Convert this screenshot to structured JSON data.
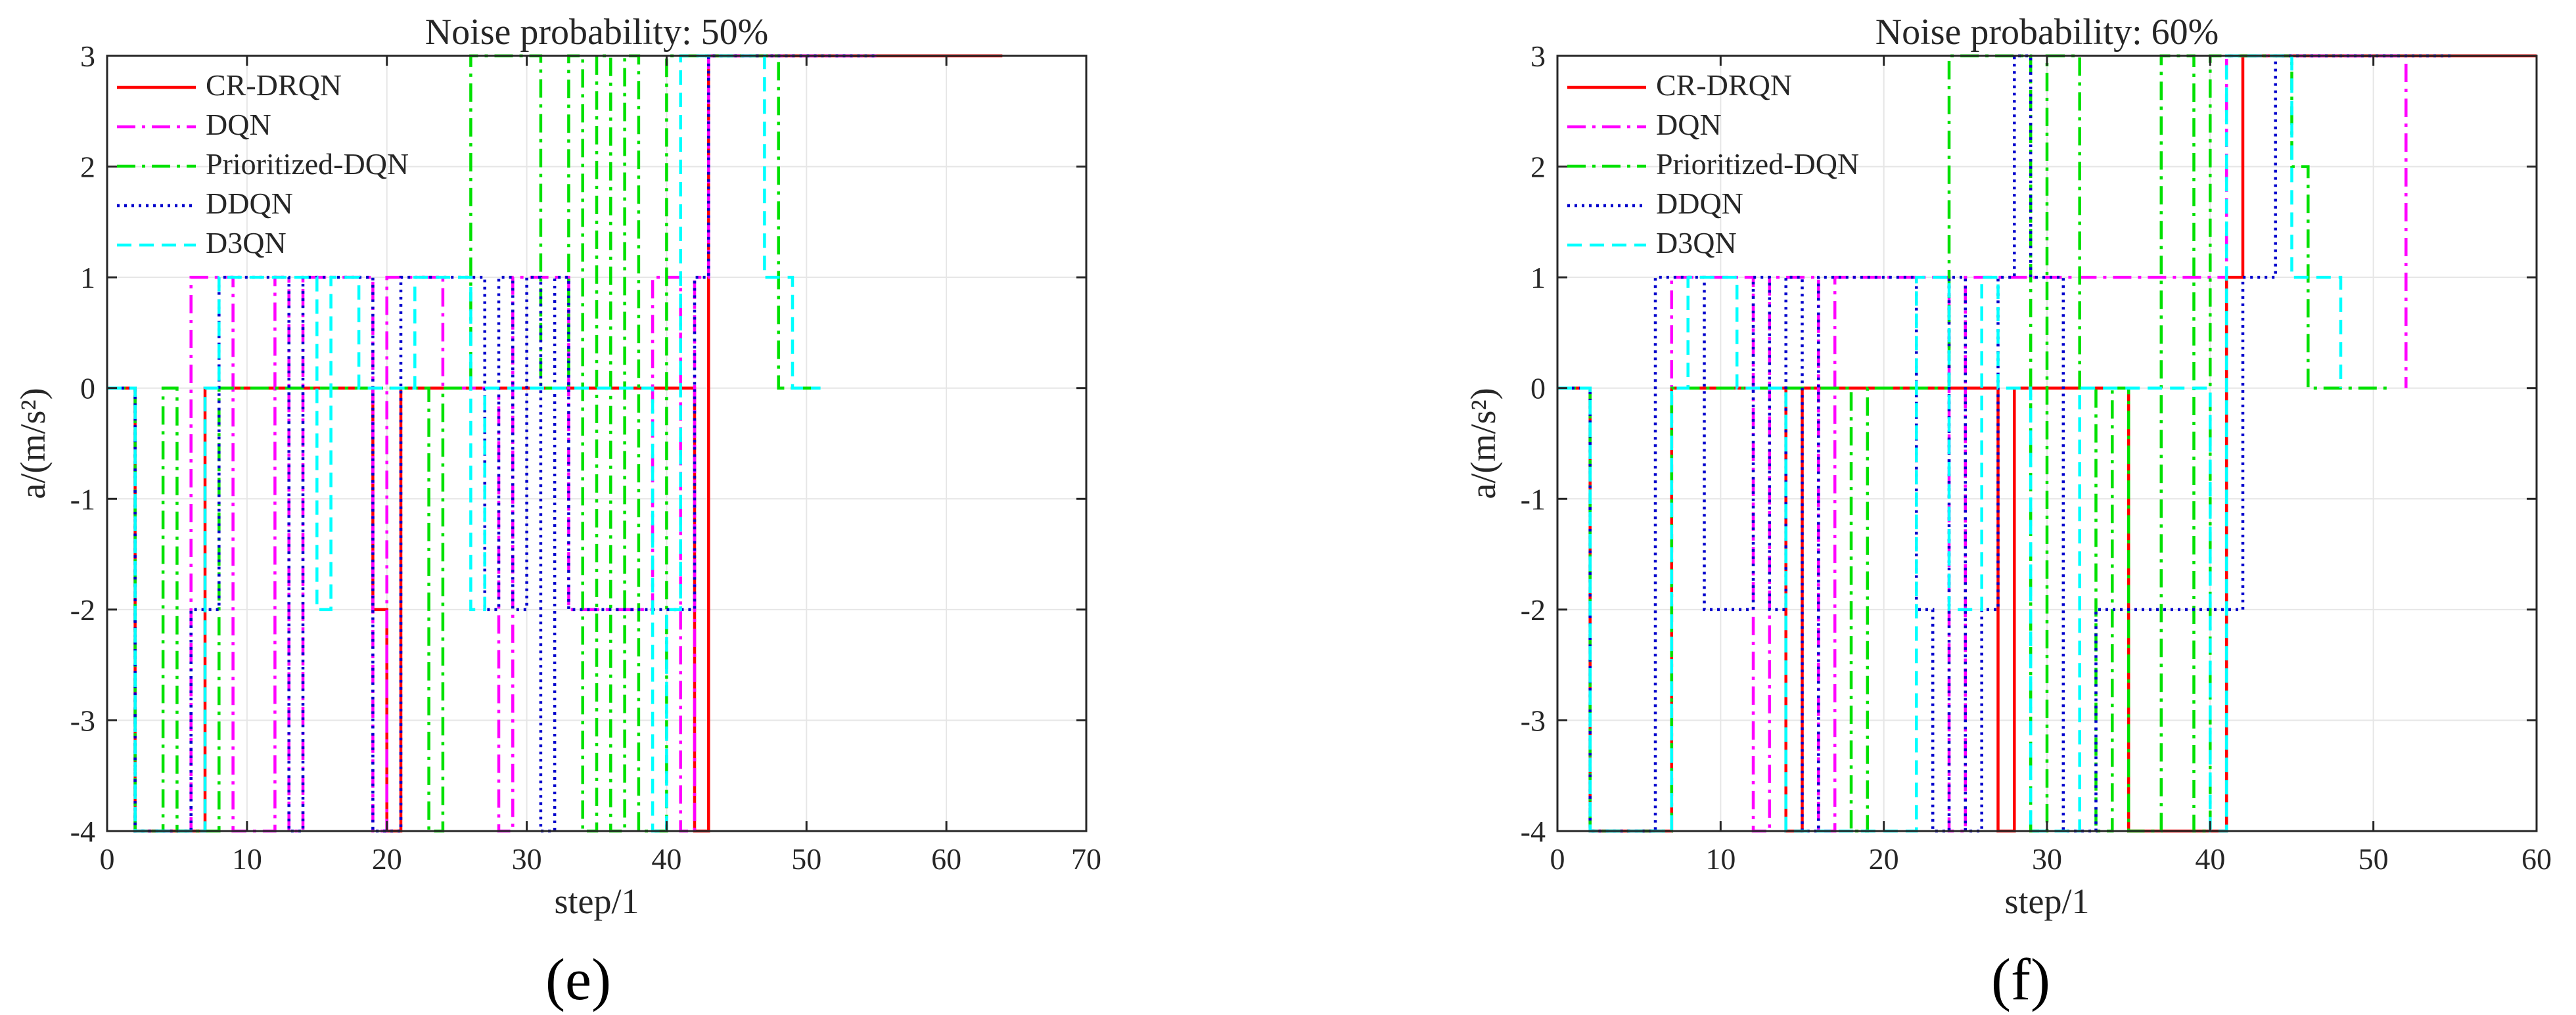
{
  "figure": {
    "captions": [
      "(e)",
      "(f)"
    ]
  },
  "colors": {
    "CR-DRQN": "#ff0000",
    "DQN": "#ff00ff",
    "Prioritized-DQN": "#00e000",
    "DDQN": "#0000cc",
    "D3QN": "#00ffff",
    "grid": "#e6e6e6",
    "axis": "#262626"
  },
  "chart_data": [
    {
      "type": "line",
      "title": "Noise probability: 50%",
      "xlabel": "step/1",
      "ylabel": "a/(m/s²)",
      "xlim": [
        0,
        70
      ],
      "ylim": [
        -4,
        3
      ],
      "xticks": [
        0,
        10,
        20,
        30,
        40,
        50,
        60,
        70
      ],
      "yticks": [
        -4,
        -3,
        -2,
        -1,
        0,
        1,
        2,
        3
      ],
      "legend_location": "top-left",
      "series": [
        {
          "name": "CR-DRQN",
          "style": "solid",
          "color": "#ff0000",
          "x": [
            0,
            2,
            2,
            7,
            7,
            8,
            8,
            19,
            19,
            20,
            20,
            21,
            21,
            27,
            27,
            41,
            41,
            42,
            42,
            43,
            43,
            55,
            55,
            64
          ],
          "y": [
            0,
            0,
            -4,
            -4,
            0,
            0,
            0,
            0,
            -2,
            -2,
            -4,
            -4,
            0,
            0,
            0,
            0,
            0,
            0,
            -4,
            -4,
            3,
            3,
            3,
            3
          ]
        },
        {
          "name": "DQN",
          "style": "dashdot",
          "color": "#ff00ff",
          "x": [
            0,
            2,
            2,
            6,
            6,
            9,
            9,
            12,
            12,
            13,
            13,
            14,
            14,
            19,
            19,
            20,
            20,
            24,
            24,
            28,
            28,
            29,
            29,
            33,
            33,
            39,
            39,
            41,
            41,
            42,
            42,
            43,
            43,
            55
          ],
          "y": [
            0,
            0,
            -4,
            -4,
            1,
            1,
            -4,
            -4,
            1,
            1,
            -4,
            -4,
            1,
            1,
            -4,
            -4,
            1,
            1,
            0,
            0,
            -4,
            -4,
            1,
            1,
            -2,
            -2,
            1,
            1,
            -4,
            -4,
            1,
            1,
            3,
            3
          ]
        },
        {
          "name": "Prioritized-DQN",
          "style": "dashdot",
          "color": "#00e000",
          "x": [
            0,
            2,
            2,
            4,
            4,
            5,
            5,
            7,
            7,
            8,
            8,
            23,
            23,
            24,
            24,
            26,
            26,
            31,
            31,
            33,
            33,
            34,
            34,
            35,
            35,
            36,
            36,
            37,
            37,
            38,
            38,
            40,
            40,
            42,
            42,
            48,
            48,
            51
          ],
          "y": [
            0,
            0,
            -4,
            -4,
            0,
            0,
            -4,
            -4,
            -4,
            -4,
            0,
            0,
            -4,
            -4,
            0,
            0,
            3,
            3,
            0,
            0,
            3,
            3,
            -4,
            -4,
            3,
            3,
            -4,
            -4,
            3,
            3,
            -4,
            -4,
            3,
            3,
            3,
            3,
            0,
            0
          ]
        },
        {
          "name": "DDQN",
          "style": "dotted",
          "color": "#0000cc",
          "x": [
            0,
            2,
            2,
            6,
            6,
            8,
            8,
            13,
            13,
            14,
            14,
            19,
            19,
            21,
            21,
            27,
            27,
            28,
            28,
            29,
            29,
            30,
            30,
            31,
            31,
            32,
            32,
            33,
            33,
            34,
            34,
            39,
            39,
            42,
            42,
            43,
            43,
            55
          ],
          "y": [
            0,
            0,
            -4,
            -4,
            -2,
            -2,
            1,
            1,
            -4,
            -4,
            1,
            1,
            -4,
            -4,
            1,
            1,
            -2,
            -2,
            1,
            1,
            -2,
            -2,
            1,
            1,
            -4,
            -4,
            1,
            1,
            -2,
            -2,
            -2,
            -2,
            -2,
            -2,
            1,
            1,
            3,
            3
          ]
        },
        {
          "name": "D3QN",
          "style": "dashed",
          "color": "#00ffff",
          "x": [
            0,
            2,
            2,
            7,
            7,
            8,
            8,
            15,
            15,
            16,
            16,
            18,
            18,
            22,
            22,
            26,
            26,
            27,
            27,
            39,
            39,
            40,
            40,
            41,
            41,
            47,
            47,
            48,
            48,
            49,
            49,
            51
          ],
          "y": [
            0,
            0,
            -4,
            -4,
            0,
            0,
            1,
            1,
            -2,
            -2,
            1,
            1,
            0,
            0,
            1,
            1,
            -2,
            -2,
            0,
            0,
            -4,
            -4,
            -2,
            -2,
            3,
            3,
            1,
            1,
            1,
            1,
            0,
            0
          ]
        }
      ]
    },
    {
      "type": "line",
      "title": "Noise probability: 60%",
      "xlabel": "step/1",
      "ylabel": "a/(m/s²)",
      "xlim": [
        0,
        60
      ],
      "ylim": [
        -4,
        3
      ],
      "xticks": [
        0,
        10,
        20,
        30,
        40,
        50,
        60
      ],
      "yticks": [
        -4,
        -3,
        -2,
        -1,
        0,
        1,
        2,
        3
      ],
      "legend_location": "top-left",
      "series": [
        {
          "name": "CR-DRQN",
          "style": "solid",
          "color": "#ff0000",
          "x": [
            0,
            2,
            2,
            7,
            7,
            14,
            14,
            15,
            15,
            27,
            27,
            28,
            28,
            35,
            35,
            41,
            41,
            42,
            42,
            60
          ],
          "y": [
            0,
            0,
            -4,
            -4,
            0,
            0,
            -4,
            -4,
            0,
            0,
            -4,
            -4,
            0,
            0,
            -4,
            -4,
            1,
            1,
            3,
            3
          ]
        },
        {
          "name": "DQN",
          "style": "dashdot",
          "color": "#ff00ff",
          "x": [
            0,
            2,
            2,
            7,
            7,
            12,
            12,
            13,
            13,
            16,
            16,
            17,
            17,
            24,
            24,
            25,
            25,
            41,
            41,
            42,
            42,
            52,
            52
          ],
          "y": [
            0,
            0,
            -4,
            -4,
            1,
            1,
            -4,
            -4,
            1,
            1,
            -4,
            -4,
            1,
            1,
            -4,
            -4,
            1,
            1,
            3,
            3,
            3,
            3,
            0
          ]
        },
        {
          "name": "Prioritized-DQN",
          "style": "dashdot",
          "color": "#00e000",
          "x": [
            0,
            2,
            2,
            7,
            7,
            18,
            18,
            19,
            19,
            24,
            24,
            29,
            29,
            30,
            30,
            32,
            32,
            33,
            33,
            34,
            34,
            35,
            35,
            37,
            37,
            39,
            39,
            40,
            40,
            45,
            45,
            46,
            46,
            51
          ],
          "y": [
            0,
            0,
            -4,
            -4,
            0,
            0,
            -4,
            -4,
            0,
            0,
            3,
            3,
            -4,
            -4,
            3,
            3,
            0,
            0,
            -4,
            -4,
            0,
            0,
            -4,
            -4,
            3,
            3,
            -4,
            -4,
            3,
            3,
            2,
            2,
            0,
            0
          ]
        },
        {
          "name": "DDQN",
          "style": "dotted",
          "color": "#0000cc",
          "x": [
            0,
            2,
            2,
            6,
            6,
            9,
            9,
            12,
            12,
            13,
            13,
            14,
            14,
            15,
            15,
            16,
            16,
            22,
            22,
            23,
            23,
            24,
            24,
            25,
            25,
            26,
            26,
            27,
            27,
            28,
            28,
            29,
            29,
            31,
            31,
            33,
            33,
            42,
            42,
            44,
            44,
            45,
            45,
            55
          ],
          "y": [
            0,
            0,
            -4,
            -4,
            1,
            1,
            -2,
            -2,
            1,
            1,
            -2,
            -2,
            1,
            1,
            -4,
            -4,
            1,
            1,
            -2,
            -2,
            -4,
            -4,
            1,
            1,
            -4,
            -4,
            -2,
            -2,
            1,
            1,
            3,
            3,
            1,
            1,
            -4,
            -4,
            -2,
            -2,
            1,
            1,
            3,
            3,
            3,
            3
          ]
        },
        {
          "name": "D3QN",
          "style": "dashed",
          "color": "#00ffff",
          "x": [
            0,
            2,
            2,
            7,
            7,
            8,
            8,
            11,
            11,
            14,
            14,
            15,
            15,
            22,
            22,
            24,
            24,
            26,
            26,
            27,
            27,
            29,
            29,
            32,
            32,
            36,
            36,
            40,
            40,
            41,
            41,
            45,
            45,
            47,
            47,
            48,
            48
          ],
          "y": [
            0,
            0,
            -4,
            -4,
            0,
            0,
            1,
            1,
            0,
            0,
            -4,
            -4,
            -4,
            -4,
            1,
            1,
            -2,
            -2,
            1,
            1,
            0,
            0,
            -4,
            -4,
            0,
            0,
            0,
            0,
            -4,
            -4,
            3,
            3,
            1,
            1,
            1,
            1,
            0
          ]
        }
      ]
    }
  ]
}
